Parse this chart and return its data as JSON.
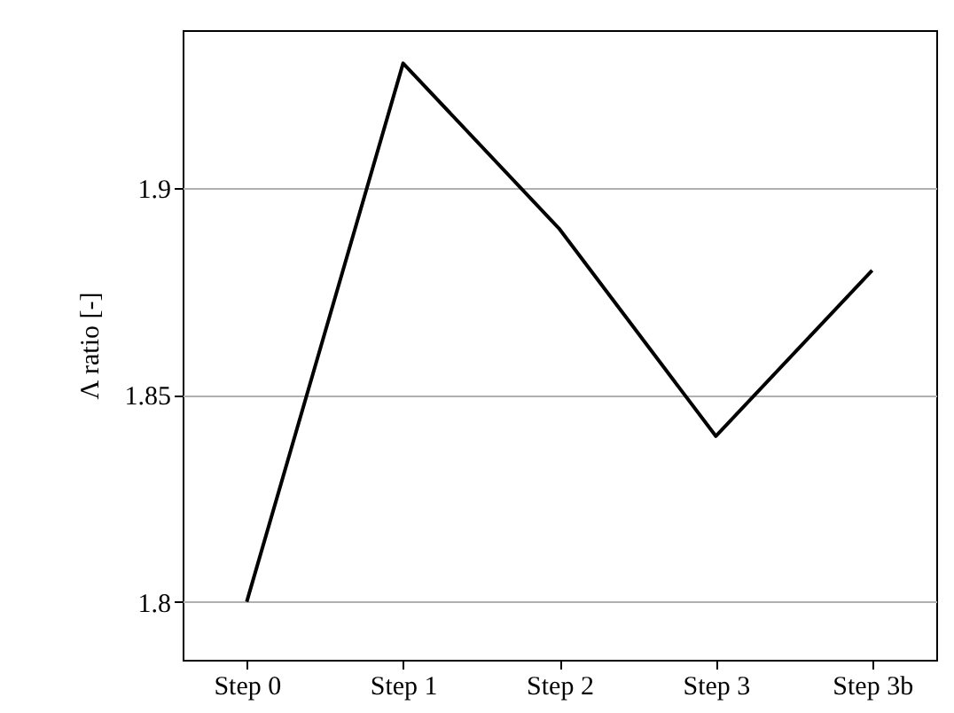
{
  "chart_data": {
    "type": "line",
    "ylabel": "Λ ratio [-]",
    "categories": [
      "Step 0",
      "Step 1",
      "Step 2",
      "Step 3",
      "Step 3b"
    ],
    "series": [
      {
        "color": "#000000",
        "values": [
          1.8,
          1.93,
          1.89,
          1.84,
          1.88
        ]
      }
    ],
    "ylim": [
      1.786,
      1.938
    ],
    "yticks": [
      1.8,
      1.85,
      1.9
    ],
    "grid": "y",
    "marker": "none",
    "line_style": "solid"
  }
}
